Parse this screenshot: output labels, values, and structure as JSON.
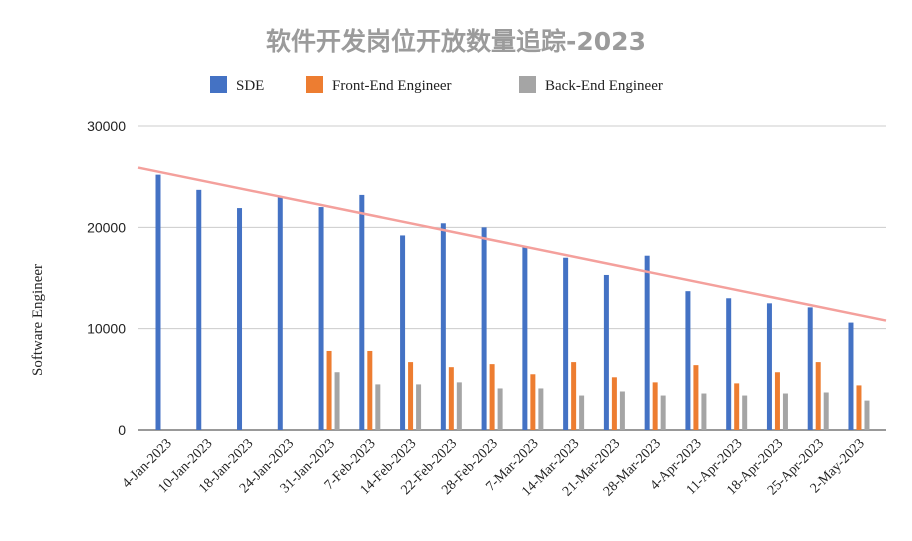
{
  "chart_data": {
    "type": "bar",
    "title": "软件开发岗位开放数量追踪-2023",
    "ylabel": "Software Engineer",
    "xlabel": "",
    "ylim": [
      0,
      30000
    ],
    "yticks": [
      0,
      10000,
      20000,
      30000
    ],
    "grid": true,
    "legend_position": "top",
    "categories": [
      "4-Jan-2023",
      "10-Jan-2023",
      "18-Jan-2023",
      "24-Jan-2023",
      "31-Jan-2023",
      "7-Feb-2023",
      "14-Feb-2023",
      "22-Feb-2023",
      "28-Feb-2023",
      "7-Mar-2023",
      "14-Mar-2023",
      "21-Mar-2023",
      "28-Mar-2023",
      "4-Apr-2023",
      "11-Apr-2023",
      "18-Apr-2023",
      "25-Apr-2023",
      "2-May-2023"
    ],
    "series": [
      {
        "name": "SDE",
        "color": "#4472c4",
        "values": [
          25200,
          23700,
          21900,
          23000,
          22000,
          23200,
          19200,
          20400,
          20000,
          18100,
          17000,
          15300,
          17200,
          13700,
          13000,
          12500,
          12100,
          10600
        ]
      },
      {
        "name": "Front-End Engineer",
        "color": "#ed7d31",
        "values": [
          null,
          null,
          null,
          null,
          7800,
          7800,
          6700,
          6200,
          6500,
          5500,
          6700,
          5200,
          4700,
          6400,
          4600,
          5700,
          6700,
          4400
        ]
      },
      {
        "name": "Back-End Engineer",
        "color": "#a5a5a5",
        "values": [
          null,
          null,
          null,
          null,
          5700,
          4500,
          4500,
          4700,
          4100,
          4100,
          3400,
          3800,
          3400,
          3600,
          3400,
          3600,
          3700,
          2900
        ]
      }
    ],
    "trendline": {
      "series": "SDE",
      "color": "#f4a09c",
      "start_value": 25900,
      "end_value": 10800
    }
  }
}
